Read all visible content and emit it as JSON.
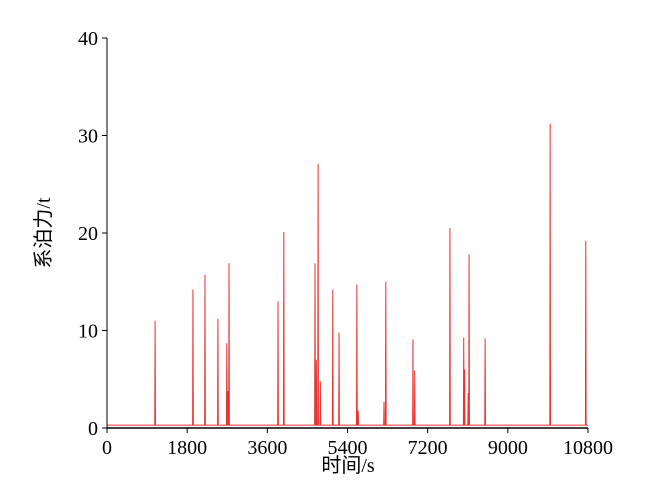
{
  "chart_data": {
    "type": "line",
    "xlabel": "时间/s",
    "ylabel": "系泊力/t",
    "color": "#e8332f",
    "x": [
      0,
      1072,
      1080,
      1088,
      1922,
      1930,
      1938,
      2192,
      2200,
      2208,
      2482,
      2490,
      2498,
      2682,
      2690,
      2698,
      2702,
      2710,
      2718,
      2732,
      2740,
      2748,
      3832,
      3840,
      3848,
      3962,
      3970,
      3978,
      4662,
      4670,
      4678,
      4692,
      4700,
      4708,
      4732,
      4740,
      4748,
      4782,
      4790,
      4798,
      5062,
      5070,
      5078,
      5202,
      5210,
      5218,
      5602,
      5610,
      5618,
      5632,
      5640,
      5648,
      6212,
      6220,
      6228,
      6252,
      6260,
      6268,
      6862,
      6870,
      6878,
      6902,
      6910,
      6918,
      7692,
      7700,
      7708,
      8002,
      8010,
      8018,
      8022,
      8030,
      8038,
      8102,
      8110,
      8118,
      8122,
      8130,
      8138,
      8482,
      8490,
      8498,
      9942,
      9950,
      9958,
      10742,
      10750,
      10758,
      10800
    ],
    "values": [
      0.3,
      0.3,
      11.0,
      0.3,
      0.3,
      14.2,
      0.3,
      0.3,
      15.7,
      0.3,
      0.3,
      11.2,
      0.3,
      0.3,
      8.7,
      0.3,
      0.3,
      3.8,
      0.3,
      0.3,
      16.9,
      0.3,
      0.3,
      13.0,
      0.3,
      0.3,
      20.1,
      0.3,
      0.3,
      16.9,
      0.3,
      0.3,
      7.0,
      0.3,
      0.3,
      27.1,
      0.3,
      0.3,
      4.8,
      0.3,
      0.3,
      14.2,
      0.3,
      0.3,
      9.8,
      0.3,
      0.3,
      14.7,
      0.3,
      0.3,
      1.8,
      0.3,
      0.3,
      2.7,
      0.3,
      0.3,
      15.0,
      0.3,
      0.3,
      9.1,
      0.3,
      0.3,
      5.9,
      0.3,
      0.3,
      20.5,
      0.3,
      0.3,
      9.3,
      0.3,
      0.3,
      6.0,
      0.3,
      0.3,
      3.6,
      0.3,
      0.3,
      17.8,
      0.3,
      0.3,
      9.2,
      0.3,
      0.3,
      31.2,
      0.3,
      0.3,
      19.2,
      0.3,
      0.3
    ],
    "xlim": [
      0,
      10800
    ],
    "xticks": [
      0,
      1800,
      3600,
      5400,
      7200,
      9000,
      10800
    ],
    "ylim": [
      0,
      40
    ],
    "yticks": [
      0,
      10,
      20,
      30,
      40
    ]
  }
}
